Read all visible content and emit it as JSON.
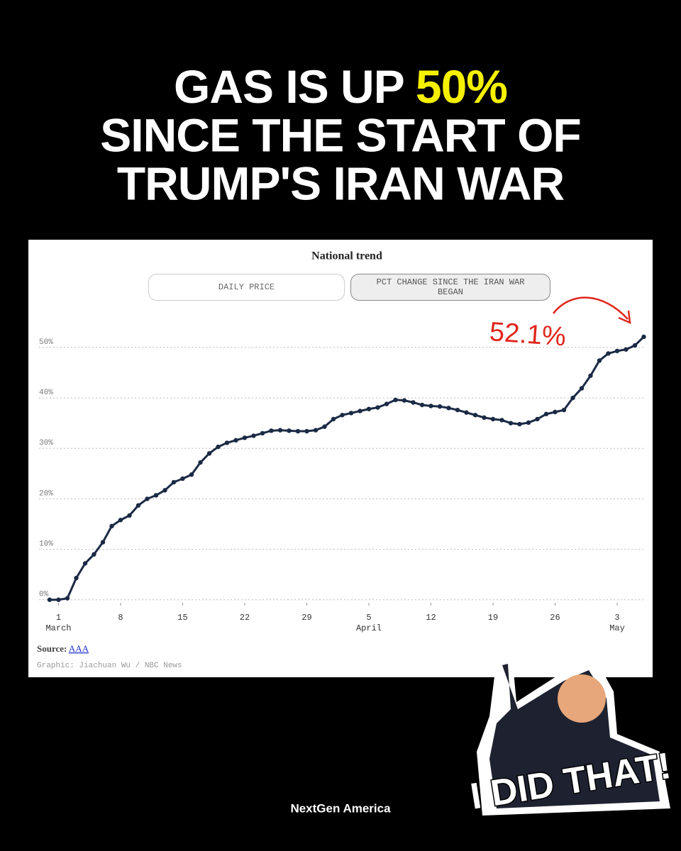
{
  "header": {
    "title_parts": [
      "GAS IS UP ",
      "50%",
      "SINCE THE START OF",
      "TRUMP'S IRAN WAR"
    ]
  },
  "chart_data": {
    "type": "line",
    "title": "National trend",
    "buttons": [
      "DAILY PRICE",
      "PCT CHANGE SINCE THE IRAN WAR BEGAN"
    ],
    "annotation": "52.1%",
    "color": "#1b2a45",
    "x": [
      -1,
      0,
      1,
      2,
      3,
      4,
      5,
      6,
      7,
      8,
      9,
      10,
      11,
      12,
      13,
      14,
      15,
      16,
      17,
      18,
      19,
      20,
      21,
      22,
      23,
      24,
      25,
      26,
      27,
      28,
      29,
      30,
      31,
      32,
      33,
      34,
      35,
      36,
      37,
      38,
      39,
      40,
      41,
      42,
      43,
      44,
      45,
      46,
      47,
      48,
      49,
      50,
      51,
      52,
      53,
      54,
      55,
      56,
      57,
      58,
      59,
      60,
      61,
      62,
      63,
      64,
      65,
      66
    ],
    "values": [
      0,
      0,
      0.3,
      4.3,
      7.2,
      9.0,
      11.4,
      14.6,
      15.8,
      16.7,
      18.7,
      20.0,
      20.7,
      21.7,
      23.3,
      24.0,
      24.8,
      27.2,
      29.0,
      30.3,
      31.1,
      31.6,
      32.1,
      32.5,
      33.0,
      33.5,
      33.6,
      33.5,
      33.4,
      33.4,
      33.6,
      34.3,
      35.8,
      36.6,
      37.0,
      37.4,
      37.8,
      38.1,
      38.8,
      39.6,
      39.5,
      39.1,
      38.6,
      38.4,
      38.3,
      38.0,
      37.6,
      37.1,
      36.6,
      36.1,
      35.8,
      35.6,
      35.0,
      34.8,
      35.1,
      35.8,
      36.8,
      37.2,
      37.6,
      40.0,
      41.9,
      44.4,
      47.4,
      48.8,
      49.3,
      49.6,
      50.4,
      52.1
    ],
    "xlim": [
      -2.2,
      66.2
    ],
    "xticks": [
      {
        "value": 0,
        "label": "1"
      },
      {
        "value": 7,
        "label": "8"
      },
      {
        "value": 14,
        "label": "15"
      },
      {
        "value": 21,
        "label": "22"
      },
      {
        "value": 28,
        "label": "29"
      },
      {
        "value": 35,
        "label": "5"
      },
      {
        "value": 42,
        "label": "12"
      },
      {
        "value": 49,
        "label": "19"
      },
      {
        "value": 56,
        "label": "26"
      },
      {
        "value": 63,
        "label": "3"
      }
    ],
    "month_labels": [
      {
        "value": 0,
        "label": "March"
      },
      {
        "value": 35,
        "label": "April"
      },
      {
        "value": 63,
        "label": "May"
      }
    ],
    "ylim": [
      -0.6,
      52.8
    ],
    "yticks": [
      {
        "value": 0,
        "label": "0%"
      },
      {
        "value": 10,
        "label": "10%"
      },
      {
        "value": 20,
        "label": "20%"
      },
      {
        "value": 30,
        "label": "30%"
      },
      {
        "value": 40,
        "label": "40%"
      },
      {
        "value": 50,
        "label": "50%"
      }
    ],
    "grid": true,
    "source_label": "Source:",
    "source_link": "AAA",
    "credit": "Graphic: Jiachuan Wu / NBC News"
  },
  "sticker": {
    "text": "I DID THAT!"
  },
  "footer": {
    "brand": "NextGen America"
  }
}
